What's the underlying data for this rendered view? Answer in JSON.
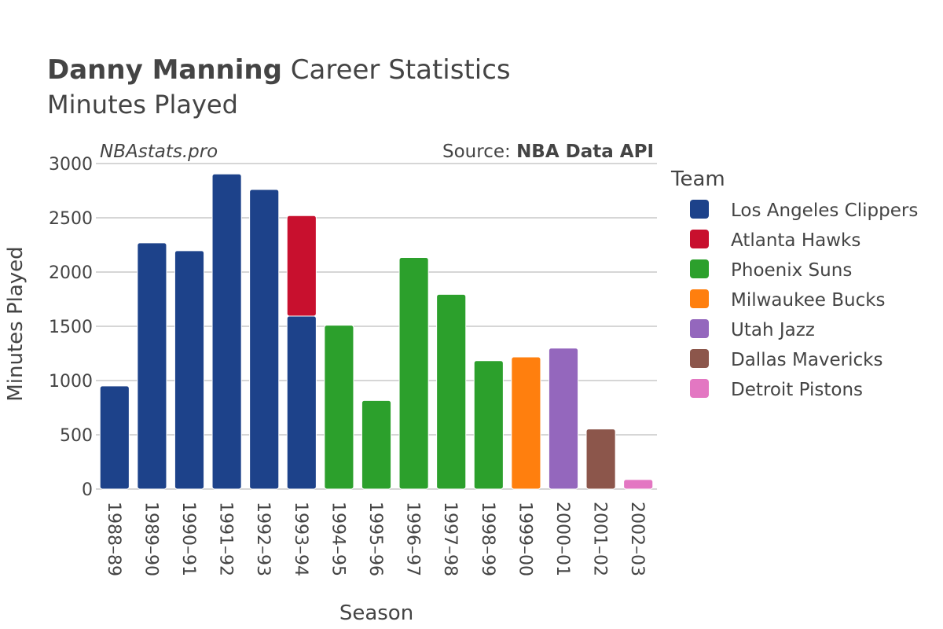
{
  "title": {
    "name": "Danny Manning",
    "rest": " Career Statistics",
    "subtitle": "Minutes Played"
  },
  "watermark": "NBAstats.pro",
  "source": {
    "prefix": "Source: ",
    "name": "NBA Data API"
  },
  "legend": {
    "title": "Team",
    "items": [
      {
        "name": "Los Angeles Clippers",
        "color": "#1d428a"
      },
      {
        "name": "Atlanta Hawks",
        "color": "#c8102e"
      },
      {
        "name": "Phoenix Suns",
        "color": "#2ca02c"
      },
      {
        "name": "Milwaukee Bucks",
        "color": "#ff7f0e"
      },
      {
        "name": "Utah Jazz",
        "color": "#9467bd"
      },
      {
        "name": "Dallas Mavericks",
        "color": "#8c564b"
      },
      {
        "name": "Detroit Pistons",
        "color": "#e377c2"
      }
    ]
  },
  "chart_data": {
    "type": "bar",
    "stacked": true,
    "title": "Danny Manning Career Statistics",
    "subtitle": "Minutes Played",
    "xlabel": "Season",
    "ylabel": "Minutes Played",
    "ylim": [
      0,
      3000
    ],
    "yticks": [
      0,
      500,
      1000,
      1500,
      2000,
      2500,
      3000
    ],
    "categories": [
      "1988–89",
      "1989–90",
      "1990–91",
      "1991–92",
      "1992–93",
      "1993–94",
      "1994–95",
      "1995–96",
      "1996–97",
      "1997–98",
      "1998–99",
      "1999–00",
      "2000–01",
      "2001–02",
      "2002–03"
    ],
    "series": [
      {
        "name": "Los Angeles Clippers",
        "values": [
          950,
          2269,
          2197,
          2904,
          2761,
          1594,
          0,
          0,
          0,
          0,
          0,
          0,
          0,
          0,
          0
        ]
      },
      {
        "name": "Atlanta Hawks",
        "values": [
          0,
          0,
          0,
          0,
          0,
          926,
          0,
          0,
          0,
          0,
          0,
          0,
          0,
          0,
          0
        ]
      },
      {
        "name": "Phoenix Suns",
        "values": [
          0,
          0,
          0,
          0,
          0,
          0,
          1510,
          816,
          2134,
          1794,
          1183,
          0,
          0,
          0,
          0
        ]
      },
      {
        "name": "Milwaukee Bucks",
        "values": [
          0,
          0,
          0,
          0,
          0,
          0,
          0,
          0,
          0,
          0,
          0,
          1217,
          0,
          0,
          0
        ]
      },
      {
        "name": "Utah Jazz",
        "values": [
          0,
          0,
          0,
          0,
          0,
          0,
          0,
          0,
          0,
          0,
          0,
          0,
          1299,
          0,
          0
        ]
      },
      {
        "name": "Dallas Mavericks",
        "values": [
          0,
          0,
          0,
          0,
          0,
          0,
          0,
          0,
          0,
          0,
          0,
          0,
          0,
          553,
          0
        ]
      },
      {
        "name": "Detroit Pistons",
        "values": [
          0,
          0,
          0,
          0,
          0,
          0,
          0,
          0,
          0,
          0,
          0,
          0,
          0,
          0,
          88
        ]
      }
    ],
    "legend_position": "right"
  }
}
